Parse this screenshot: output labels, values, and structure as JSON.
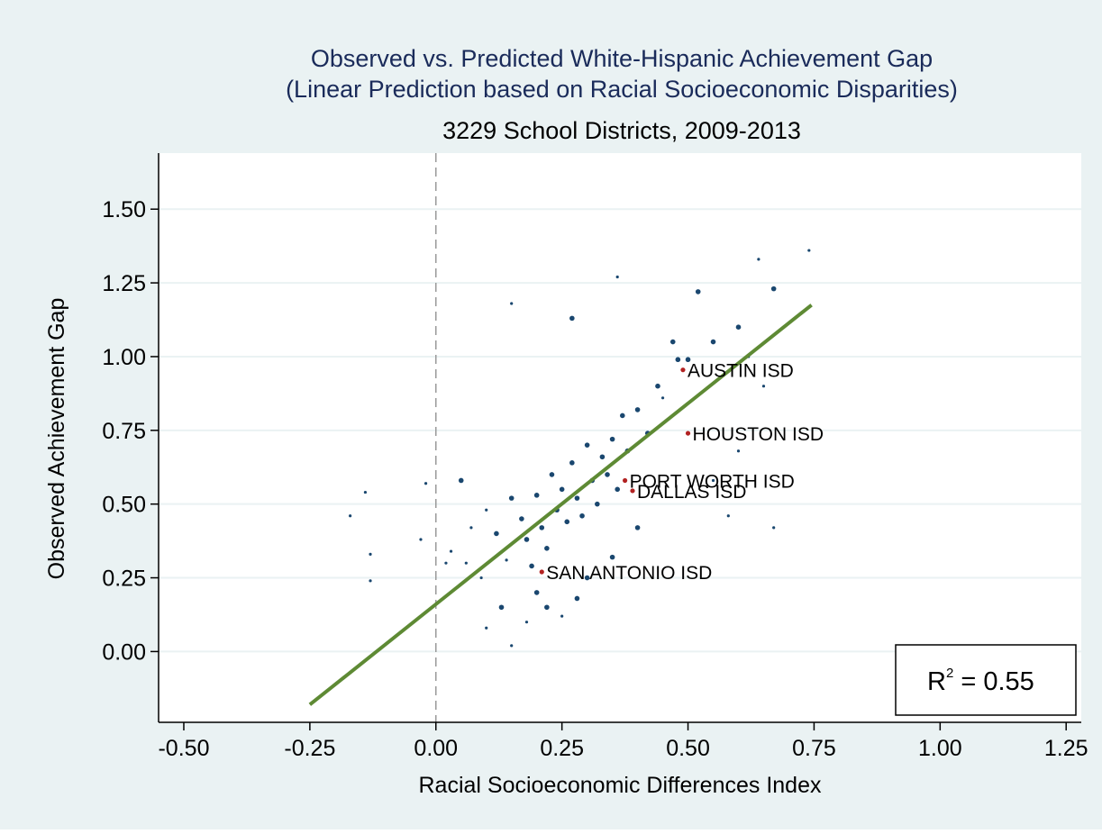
{
  "colors": {
    "background": "#eaf2f3",
    "plot_background": "#ffffff",
    "grid": "#eaf2f3",
    "title": "#1a2b5a",
    "text": "#000000",
    "points": "#1a476f",
    "highlight": "#b22222",
    "fit_line": "#5e8a34",
    "zero_line": "#999999"
  },
  "chart_data": {
    "type": "scatter",
    "title": "Observed vs. Predicted White-Hispanic Achievement Gap",
    "title_line2": "(Linear Prediction based on Racial Socioeconomic Disparities)",
    "subtitle": "3229 School Districts, 2009-2013",
    "xlabel": "Racial Socioeconomic Differences Index",
    "ylabel": "Observed Achievement Gap",
    "xlim": [
      -0.55,
      1.28
    ],
    "ylim": [
      -0.24,
      1.69
    ],
    "x_ticks": [
      {
        "value": -0.5,
        "label": "-0.50"
      },
      {
        "value": -0.25,
        "label": "-0.25"
      },
      {
        "value": 0,
        "label": "0.00"
      },
      {
        "value": 0.25,
        "label": "0.25"
      },
      {
        "value": 0.5,
        "label": "0.50"
      },
      {
        "value": 0.75,
        "label": "0.75"
      },
      {
        "value": 1.0,
        "label": "1.00"
      },
      {
        "value": 1.25,
        "label": "1.25"
      }
    ],
    "y_ticks": [
      {
        "value": 0,
        "label": "0.00"
      },
      {
        "value": 0.25,
        "label": "0.25"
      },
      {
        "value": 0.5,
        "label": "0.50"
      },
      {
        "value": 0.75,
        "label": "0.75"
      },
      {
        "value": 1.0,
        "label": "1.00"
      },
      {
        "value": 1.25,
        "label": "1.25"
      },
      {
        "value": 1.5,
        "label": "1.50"
      }
    ],
    "grid": true,
    "reference_line_x": 0,
    "fit_line": {
      "x": [
        -0.25,
        0.745
      ],
      "y": [
        -0.18,
        1.175
      ]
    },
    "annotation": {
      "r2_prefix": "R",
      "r2_exponent": "2",
      "r2_value": " = 0.55"
    },
    "labeled_points": [
      {
        "label": "AUSTIN ISD",
        "x": 0.49,
        "y": 0.955
      },
      {
        "label": "HOUSTON ISD",
        "x": 0.5,
        "y": 0.74
      },
      {
        "label": "PORT WORTH ISD",
        "x": 0.375,
        "y": 0.58
      },
      {
        "label": "DALLAS ISD",
        "x": 0.39,
        "y": 0.545
      },
      {
        "label": "SAN ANTONIO ISD",
        "x": 0.21,
        "y": 0.27
      }
    ],
    "points": [
      [
        0.48,
        0.99,
        "m"
      ],
      [
        0.52,
        1.22,
        "m"
      ],
      [
        0.6,
        1.1,
        "m"
      ],
      [
        0.67,
        1.23,
        "m"
      ],
      [
        0.74,
        1.36,
        "s"
      ],
      [
        0.64,
        1.33,
        "s"
      ],
      [
        0.36,
        1.27,
        "s"
      ],
      [
        0.27,
        1.13,
        "m"
      ],
      [
        0.15,
        1.18,
        "s"
      ],
      [
        -0.14,
        0.54,
        "s"
      ],
      [
        -0.17,
        0.46,
        "s"
      ],
      [
        -0.13,
        0.33,
        "s"
      ],
      [
        -0.13,
        0.24,
        "s"
      ],
      [
        -0.03,
        0.38,
        "s"
      ],
      [
        -0.02,
        0.57,
        "s"
      ],
      [
        0.03,
        0.34,
        "s"
      ],
      [
        0.05,
        0.58,
        "m"
      ],
      [
        0.07,
        0.42,
        "s"
      ],
      [
        0.1,
        0.48,
        "s"
      ],
      [
        0.12,
        0.4,
        "m"
      ],
      [
        0.14,
        0.31,
        "s"
      ],
      [
        0.15,
        0.52,
        "m"
      ],
      [
        0.17,
        0.45,
        "m"
      ],
      [
        0.18,
        0.38,
        "m"
      ],
      [
        0.19,
        0.29,
        "m"
      ],
      [
        0.2,
        0.53,
        "m"
      ],
      [
        0.21,
        0.42,
        "m"
      ],
      [
        0.22,
        0.35,
        "m"
      ],
      [
        0.23,
        0.6,
        "m"
      ],
      [
        0.24,
        0.48,
        "m"
      ],
      [
        0.25,
        0.55,
        "m"
      ],
      [
        0.26,
        0.44,
        "m"
      ],
      [
        0.27,
        0.64,
        "m"
      ],
      [
        0.28,
        0.52,
        "m"
      ],
      [
        0.29,
        0.46,
        "m"
      ],
      [
        0.3,
        0.7,
        "m"
      ],
      [
        0.31,
        0.58,
        "m"
      ],
      [
        0.32,
        0.5,
        "m"
      ],
      [
        0.33,
        0.66,
        "m"
      ],
      [
        0.34,
        0.6,
        "m"
      ],
      [
        0.35,
        0.72,
        "m"
      ],
      [
        0.36,
        0.55,
        "m"
      ],
      [
        0.37,
        0.8,
        "m"
      ],
      [
        0.38,
        0.68,
        "m"
      ],
      [
        0.4,
        0.82,
        "m"
      ],
      [
        0.42,
        0.74,
        "m"
      ],
      [
        0.44,
        0.9,
        "m"
      ],
      [
        0.45,
        0.86,
        "s"
      ],
      [
        0.47,
        1.05,
        "m"
      ],
      [
        0.5,
        0.99,
        "m"
      ],
      [
        0.55,
        1.05,
        "m"
      ],
      [
        0.58,
        0.95,
        "s"
      ],
      [
        0.62,
        1.0,
        "s"
      ],
      [
        0.65,
        0.9,
        "s"
      ],
      [
        0.6,
        0.68,
        "s"
      ],
      [
        0.55,
        0.58,
        "s"
      ],
      [
        0.58,
        0.46,
        "s"
      ],
      [
        0.67,
        0.42,
        "s"
      ],
      [
        0.2,
        0.2,
        "m"
      ],
      [
        0.22,
        0.15,
        "m"
      ],
      [
        0.25,
        0.12,
        "s"
      ],
      [
        0.28,
        0.18,
        "m"
      ],
      [
        0.18,
        0.1,
        "s"
      ],
      [
        0.15,
        0.02,
        "s"
      ],
      [
        0.1,
        0.08,
        "s"
      ],
      [
        0.13,
        0.15,
        "m"
      ],
      [
        0.3,
        0.25,
        "m"
      ],
      [
        0.35,
        0.32,
        "m"
      ],
      [
        0.4,
        0.42,
        "m"
      ],
      [
        0.09,
        0.25,
        "s"
      ],
      [
        0.06,
        0.3,
        "s"
      ],
      [
        0.02,
        0.3,
        "s"
      ]
    ]
  }
}
